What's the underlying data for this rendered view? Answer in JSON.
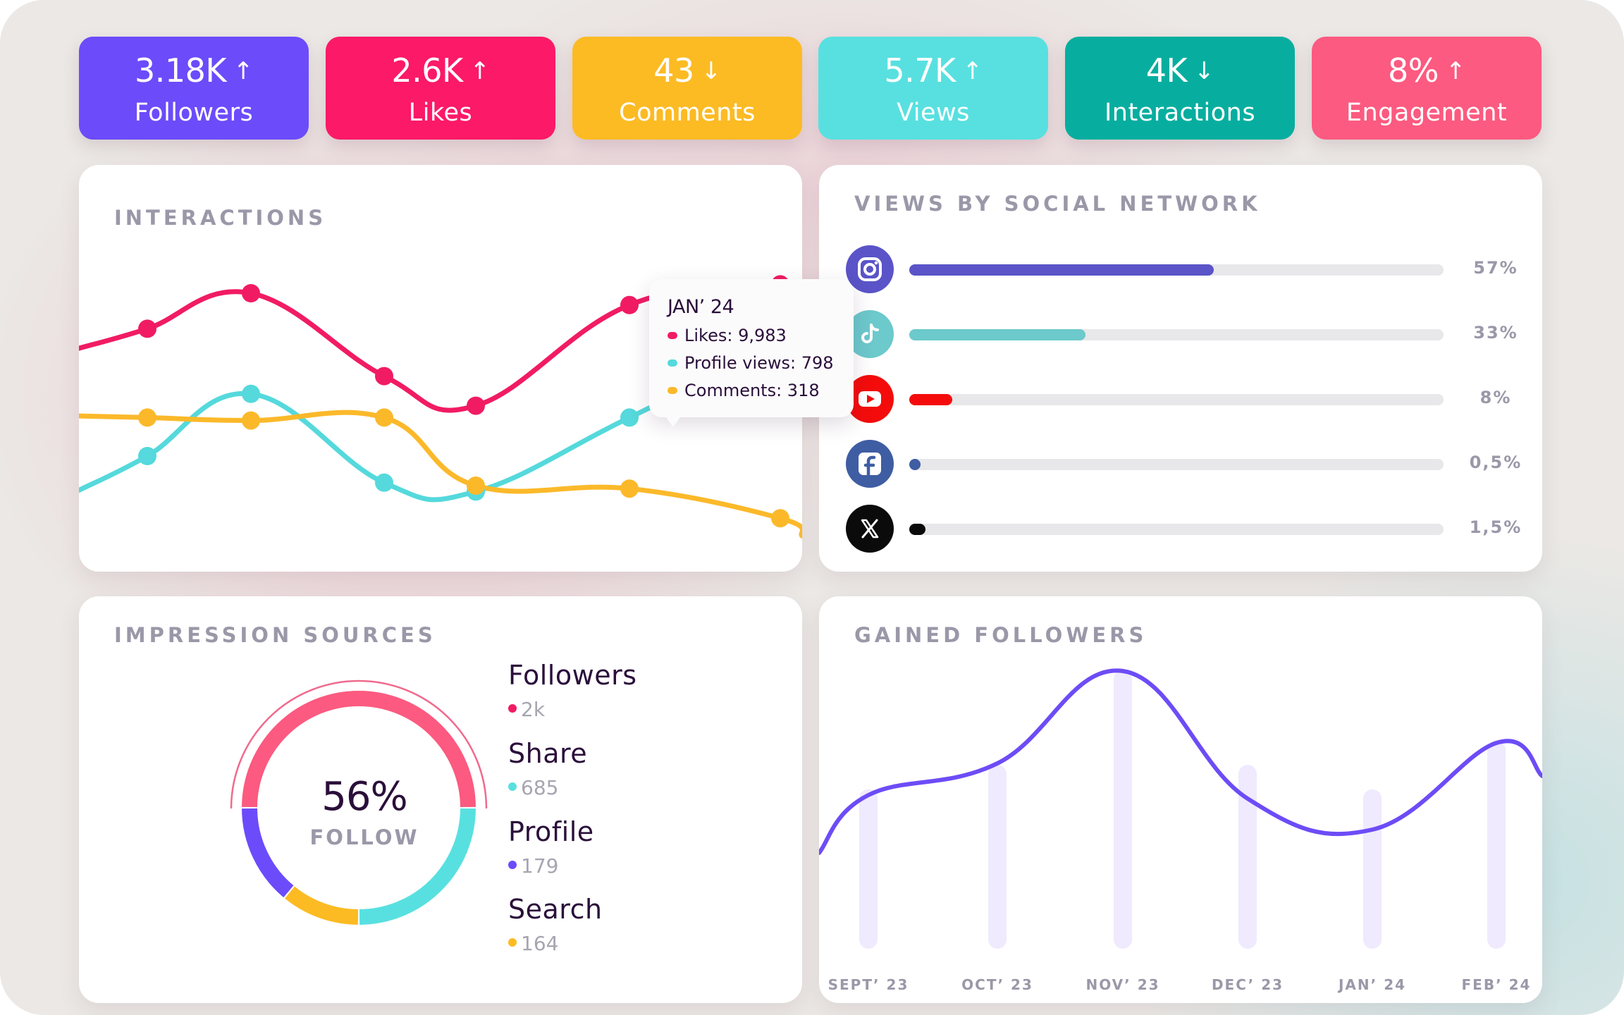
{
  "kpis": [
    {
      "value": "3.18K",
      "trend": "up",
      "arrow": "↑",
      "label": "Followers",
      "color": "#6c4bfb"
    },
    {
      "value": "2.6K",
      "trend": "up",
      "arrow": "↑",
      "label": "Likes",
      "color": "#fc1967"
    },
    {
      "value": "43",
      "trend": "down",
      "arrow": "↓",
      "label": "Comments",
      "color": "#fcbb23"
    },
    {
      "value": "5.7K",
      "trend": "up",
      "arrow": "↑",
      "label": "Views",
      "color": "#58e0e0"
    },
    {
      "value": "4K",
      "trend": "down",
      "arrow": "↓",
      "label": "Interactions",
      "color": "#07ae9f"
    },
    {
      "value": "8%",
      "trend": "up",
      "arrow": "↑",
      "label": "Engagement",
      "color": "#fc5a80"
    }
  ],
  "interactions": {
    "title": "INTERACTIONS",
    "tooltip": {
      "title": "JAN’ 24",
      "rows": [
        {
          "label": "Likes: 9,983",
          "color": "#f11b64"
        },
        {
          "label": "Profile views: 798",
          "color": "#55d9dc"
        },
        {
          "label": "Comments: 318",
          "color": "#fbb92a"
        }
      ]
    }
  },
  "views_by_network": {
    "title": "VIEWS BY SOCIAL NETWORK",
    "networks": [
      {
        "name": "Instagram",
        "icon": "instagram-icon",
        "percent_label": "57%",
        "value": 57,
        "color": "#5a54c8"
      },
      {
        "name": "TikTok",
        "icon": "tiktok-icon",
        "percent_label": "33%",
        "value": 33,
        "color": "#6cc9cc"
      },
      {
        "name": "YouTube",
        "icon": "youtube-icon",
        "percent_label": "8%",
        "value": 8,
        "color": "#f40c0c"
      },
      {
        "name": "Facebook",
        "icon": "facebook-icon",
        "percent_label": "0,5%",
        "value": 0.5,
        "color": "#3f5da3"
      },
      {
        "name": "X",
        "icon": "x-icon",
        "percent_label": "1,5%",
        "value": 1.5,
        "color": "#0b0b0b"
      }
    ]
  },
  "impression_sources": {
    "title": "IMPRESSION SOURCES",
    "center_value": "56%",
    "center_label": "FOLLOW",
    "items": [
      {
        "name": "Followers",
        "value": "2k",
        "color": "#fc5a80",
        "dot": "#f11b64"
      },
      {
        "name": "Share",
        "value": "685",
        "color": "#58e0e0",
        "dot": "#58e0e0"
      },
      {
        "name": "Profile",
        "value": "179",
        "color": "#6c4bfb",
        "dot": "#6c4bfb"
      },
      {
        "name": "Search",
        "value": "164",
        "color": "#fcbb23",
        "dot": "#fcbb23"
      }
    ]
  },
  "gained_followers": {
    "title": "GAINED FOLLOWERS"
  },
  "chart_data": [
    {
      "type": "line",
      "title": "INTERACTIONS",
      "xlabel": "",
      "ylabel": "",
      "grid": false,
      "x": [
        1,
        2,
        3,
        4,
        5,
        6
      ],
      "series": [
        {
          "name": "Likes",
          "color": "#f11b64",
          "values": [
            78,
            90,
            62,
            52,
            86,
            93
          ]
        },
        {
          "name": "Profile views",
          "color": "#55d9dc",
          "values": [
            35,
            56,
            26,
            23,
            48,
            72
          ]
        },
        {
          "name": "Comments",
          "color": "#fbb92a",
          "values": [
            48,
            47,
            48,
            25,
            24,
            14
          ]
        }
      ],
      "highlight": {
        "x": "JAN’ 24",
        "Likes": 9983,
        "Profile views": 798,
        "Comments": 318
      }
    },
    {
      "type": "pie",
      "title": "IMPRESSION SOURCES",
      "categories": [
        "Followers",
        "Share",
        "Profile",
        "Search"
      ],
      "values": [
        50,
        25,
        14,
        11
      ],
      "labels": [
        "2k",
        "685",
        "179",
        "164"
      ],
      "center": "56% FOLLOW"
    },
    {
      "type": "line",
      "title": "GAINED FOLLOWERS",
      "categories": [
        "SEPT’ 23",
        "OCT’ 23",
        "NOV’ 23",
        "DEC’ 23",
        "JAN’ 24",
        "FEB’ 24"
      ],
      "values": [
        52,
        64,
        100,
        63,
        54,
        72
      ],
      "bar_values": [
        56,
        65,
        100,
        65,
        56,
        74
      ],
      "xlabel": "",
      "ylabel": "",
      "grid": false
    }
  ]
}
